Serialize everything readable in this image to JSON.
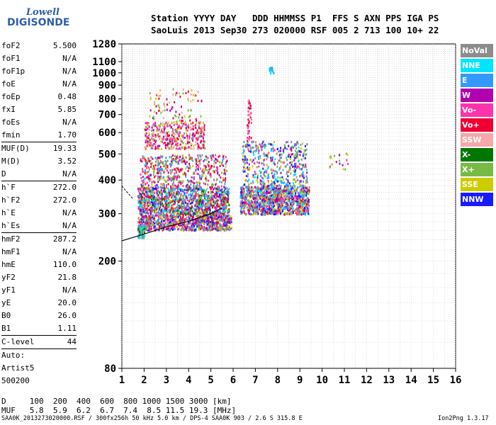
{
  "logo": {
    "line1": "Lowell",
    "line2": "DIGISONDE"
  },
  "header": {
    "line1": "Station YYYY DAY   DDD HHMMSS P1  FFS S AXN PPS IGA PS",
    "line2": "SaoLuis 2013 Sep30 273 020000 RSF 005 2 713 100 10+ 22"
  },
  "params": [
    {
      "k": "foF2",
      "v": "5.500"
    },
    {
      "k": "foF1",
      "v": "N/A"
    },
    {
      "k": "foF1p",
      "v": "N/A"
    },
    {
      "k": "foE",
      "v": "N/A"
    },
    {
      "k": "foEp",
      "v": "0.48"
    },
    {
      "k": "fxI",
      "v": "5.85"
    },
    {
      "k": "foEs",
      "v": "N/A"
    },
    {
      "k": "fmin",
      "v": "1.70"
    },
    {
      "sep": true
    },
    {
      "k": "MUF(D)",
      "v": "19.33"
    },
    {
      "k": "M(D)",
      "v": "3.52"
    },
    {
      "k": "D",
      "v": "N/A"
    },
    {
      "sep": true
    },
    {
      "k": "h`F",
      "v": "272.0"
    },
    {
      "k": "h`F2",
      "v": "272.0"
    },
    {
      "k": "h`E",
      "v": "N/A"
    },
    {
      "k": "h`Es",
      "v": "N/A"
    },
    {
      "sep": true
    },
    {
      "k": "hmF2",
      "v": "287.2"
    },
    {
      "k": "hmF1",
      "v": "N/A"
    },
    {
      "k": "hmE",
      "v": "110.0"
    },
    {
      "k": "yF2",
      "v": "21.8"
    },
    {
      "k": "yF1",
      "v": "N/A"
    },
    {
      "k": "yE",
      "v": "20.0"
    },
    {
      "k": "B0",
      "v": "26.0"
    },
    {
      "k": "B1",
      "v": "1.11"
    },
    {
      "sep": true
    },
    {
      "k": "C-level",
      "v": "44"
    },
    {
      "sep": true
    },
    {
      "t": "Auto:"
    },
    {
      "t": "Artist5"
    },
    {
      "t": "500200"
    }
  ],
  "bottom": {
    "d_row": "D     100  200  400  600  800 1000 1500 3000 [km]",
    "muf_row": "MUF   5.8  5.9  6.2  6.7  7.4  8.5 11.5 19.3 [MHz]"
  },
  "footer": {
    "left": "SAA0K_2013273020000.RSF / 300fx256h 50 kHz 5.0 km / DPS-4 SAA0K 903 / 2.6 S 315.8 E",
    "right": "Ion2Png 1.3.17"
  },
  "legend": [
    {
      "label": "NoVal",
      "color": "#8c8c8c"
    },
    {
      "label": "NNE",
      "color": "#00e5ff"
    },
    {
      "label": "E",
      "color": "#3399ff"
    },
    {
      "label": "W",
      "color": "#b000b0"
    },
    {
      "label": "Vo-",
      "color": "#ff33aa"
    },
    {
      "label": "Vo+",
      "color": "#ee0033"
    },
    {
      "label": "SSW",
      "color": "#f4a8a8"
    },
    {
      "label": "X-",
      "color": "#007700"
    },
    {
      "label": "X+",
      "color": "#77bb44"
    },
    {
      "label": "SSE",
      "color": "#cccc00"
    },
    {
      "label": "NNW",
      "color": "#1a1aff"
    }
  ],
  "chart_data": {
    "type": "scatter",
    "title": "",
    "xlabel": "",
    "ylabel": "",
    "xlim": [
      1,
      16
    ],
    "ylim": [
      80,
      1280
    ],
    "yscale": "log",
    "x_ticks": [
      1,
      2,
      3,
      4,
      5,
      6,
      7,
      8,
      9,
      10,
      11,
      12,
      13,
      14,
      15,
      16
    ],
    "y_ticks": [
      80,
      200,
      300,
      400,
      500,
      600,
      700,
      800,
      900,
      1000,
      1100,
      1280
    ],
    "grid": true,
    "legend_position": "right",
    "clusters": [
      {
        "freq": [
          1.7,
          5.9
        ],
        "height": [
          260,
          340
        ],
        "note": "main F-trace"
      },
      {
        "freq": [
          1.7,
          5.9
        ],
        "height": [
          340,
          500
        ]
      },
      {
        "freq": [
          2.0,
          4.8
        ],
        "height": [
          520,
          660
        ]
      },
      {
        "freq": [
          6.3,
          9.4
        ],
        "height": [
          300,
          520
        ]
      },
      {
        "freq": [
          7.6,
          7.8
        ],
        "height": [
          1000,
          1060
        ]
      },
      {
        "freq": [
          10.3,
          11.2
        ],
        "height": [
          440,
          510
        ]
      }
    ],
    "profile_line": {
      "freq": [
        1.0,
        2.0,
        3.0,
        4.0,
        5.0,
        5.5
      ],
      "height": [
        238,
        252,
        268,
        281,
        300,
        315
      ]
    }
  }
}
